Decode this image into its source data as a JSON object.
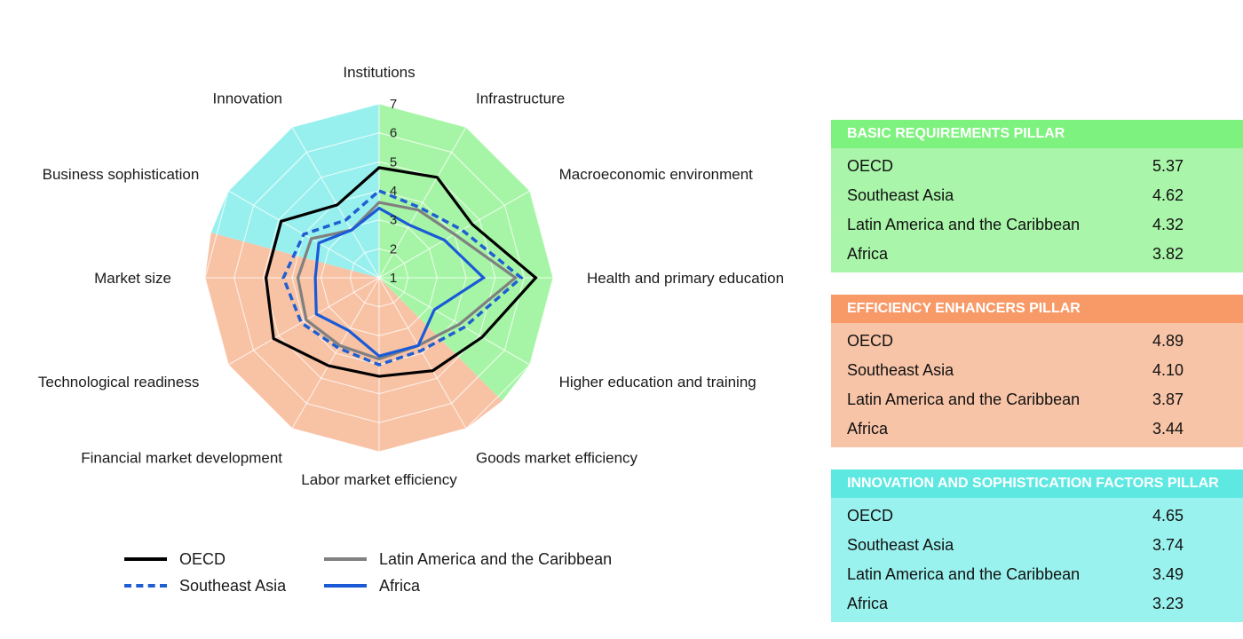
{
  "chart_data": {
    "type": "radar",
    "axes": [
      "Institutions",
      "Infrastructure",
      "Macroeconomic environment",
      "Health and primary education",
      "Higher education and training",
      "Goods market efficiency",
      "Labor market efficiency",
      "Financial market development",
      "Technological readiness",
      "Market size",
      "Business sophistication",
      "Innovation"
    ],
    "rlim": [
      1,
      7
    ],
    "ticks": [
      "1",
      "2",
      "3",
      "4",
      "5",
      "6",
      "7"
    ],
    "sector_colors": {
      "basic": "#a6f5a6",
      "efficiency": "#f8c2a5",
      "innovation": "#98f0ee"
    },
    "series": [
      {
        "name": "OECD",
        "color": "#000000",
        "dash": "solid",
        "values": [
          4.8,
          5.0,
          4.7,
          6.4,
          5.1,
          4.7,
          4.4,
          4.5,
          5.2,
          4.9,
          4.9,
          3.9
        ]
      },
      {
        "name": "Southeast Asia",
        "color": "#1f5fd1",
        "dash": "dashed",
        "values": [
          4.0,
          3.8,
          4.3,
          5.9,
          4.4,
          3.9,
          4.0,
          3.8,
          4.1,
          4.3,
          4.0,
          3.3
        ]
      },
      {
        "name": "Latin America and the Caribbean",
        "color": "#808080",
        "dash": "solid",
        "values": [
          3.6,
          3.7,
          4.0,
          5.7,
          4.2,
          3.7,
          3.8,
          3.7,
          3.9,
          3.8,
          3.7,
          2.9
        ]
      },
      {
        "name": "Africa",
        "color": "#1a5ad7",
        "dash": "solid",
        "values": [
          3.4,
          3.1,
          3.6,
          4.6,
          3.2,
          3.7,
          3.7,
          3.1,
          3.5,
          3.2,
          3.4,
          2.9
        ]
      }
    ]
  },
  "legend": [
    {
      "label": "OECD",
      "color": "#000000",
      "style": "solid"
    },
    {
      "label": "Latin America and the Caribbean",
      "color": "#808080",
      "style": "solid"
    },
    {
      "label": "Southeast Asia",
      "color": "#1f5fd1",
      "style": "dashed"
    },
    {
      "label": "Africa",
      "color": "#1a5ad7",
      "style": "solid"
    }
  ],
  "pillars": [
    {
      "title": "BASIC REQUIREMENTS PILLAR",
      "header_color": "#7ef27e",
      "body_color": "#a9f5a9",
      "rows": [
        {
          "name": "OECD",
          "value": "5.37"
        },
        {
          "name": "Southeast Asia",
          "value": "4.62"
        },
        {
          "name": "Latin America and the Caribbean",
          "value": "4.32"
        },
        {
          "name": "Africa",
          "value": "3.82"
        }
      ]
    },
    {
      "title": "EFFICIENCY ENHANCERS PILLAR",
      "header_color": "#f79a68",
      "body_color": "#f8c4a7",
      "rows": [
        {
          "name": "OECD",
          "value": "4.89"
        },
        {
          "name": "Southeast Asia",
          "value": "4.10"
        },
        {
          "name": "Latin America and the Caribbean",
          "value": "3.87"
        },
        {
          "name": "Africa",
          "value": "3.44"
        }
      ]
    },
    {
      "title": "INNOVATION AND SOPHISTICATION FACTORS PILLAR",
      "header_color": "#5ee8e2",
      "body_color": "#9af2ee",
      "rows": [
        {
          "name": "OECD",
          "value": "4.65"
        },
        {
          "name": "Southeast Asia",
          "value": "3.74"
        },
        {
          "name": "Latin America and the Caribbean",
          "value": "3.49"
        },
        {
          "name": "Africa",
          "value": "3.23"
        }
      ]
    }
  ]
}
